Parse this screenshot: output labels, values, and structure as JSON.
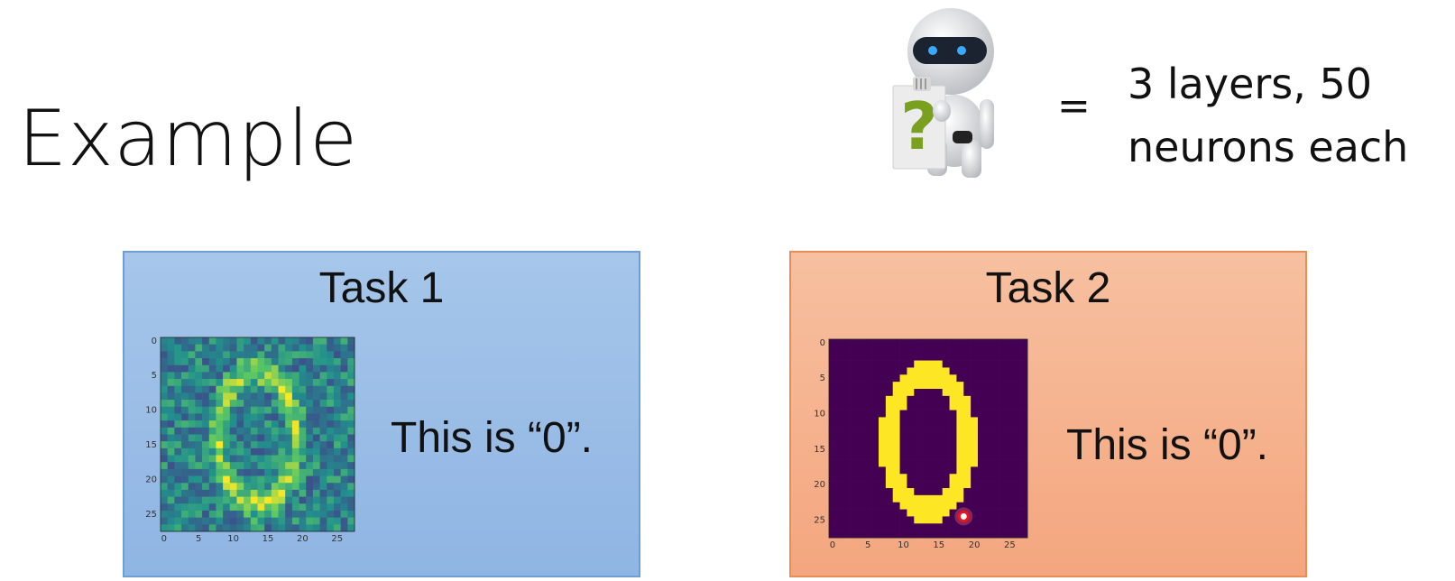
{
  "slide": {
    "title": "Example",
    "equals": "=",
    "model_line1": "3 layers, 50",
    "model_line2": "neurons each",
    "robot_sign": "?"
  },
  "task1": {
    "title": "Task 1",
    "caption": "This is “0”.",
    "y_ticks": [
      "0",
      "5",
      "10",
      "15",
      "20",
      "25"
    ],
    "x_ticks": [
      "0",
      "5",
      "10",
      "15",
      "20",
      "25"
    ],
    "colors": {
      "bg": "#9dc3e6",
      "border": "#6d9fd6",
      "low": "#3b0f70",
      "mid": "#21918c",
      "high": "#fde725"
    }
  },
  "task2": {
    "title": "Task 2",
    "caption": "This is “0”.",
    "y_ticks": [
      "0",
      "5",
      "10",
      "15",
      "20",
      "25"
    ],
    "x_ticks": [
      "0",
      "5",
      "10",
      "15",
      "20",
      "25"
    ],
    "colors": {
      "bg": "#f8b994",
      "border": "#e98d56",
      "low": "#440154",
      "high": "#fde725"
    }
  }
}
